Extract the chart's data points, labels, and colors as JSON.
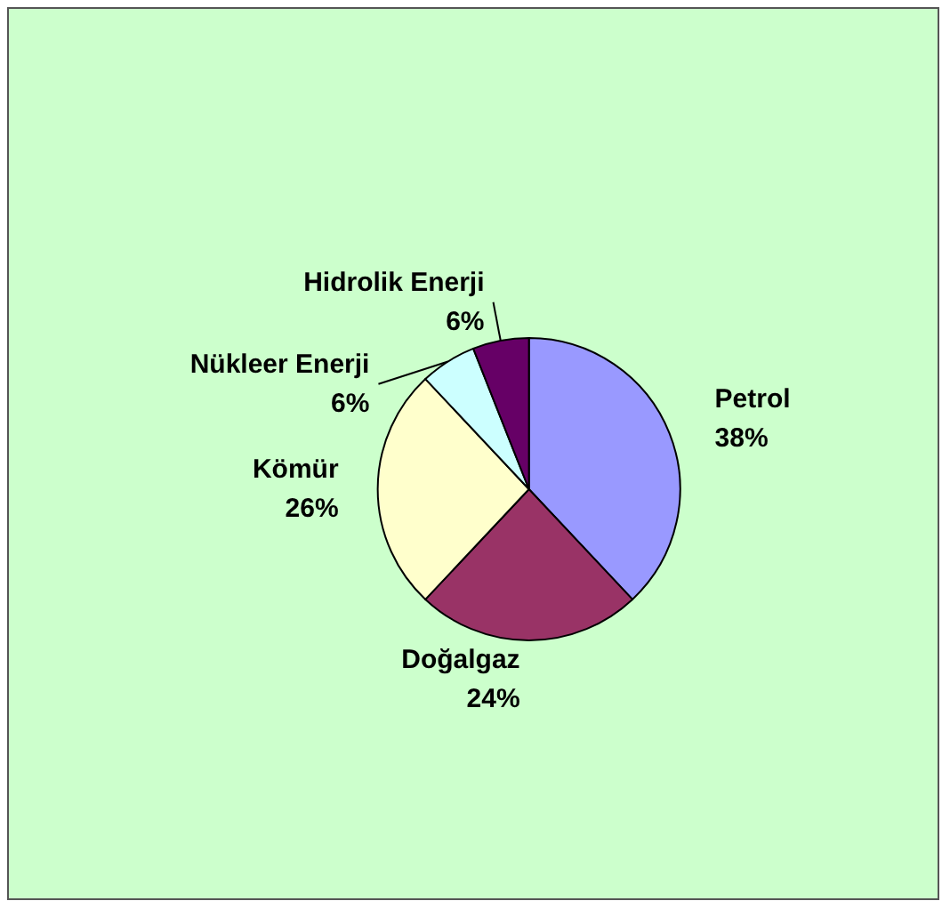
{
  "chart_data": {
    "type": "pie",
    "categories": [
      "Petrol",
      "Doğalgaz",
      "Kömür",
      "Nükleer Enerji",
      "Hidrolik Enerji"
    ],
    "values": [
      38,
      24,
      26,
      6,
      6
    ],
    "value_labels": [
      "38%",
      "24%",
      "26%",
      "6%",
      "6%"
    ],
    "colors": [
      "#9999ff",
      "#993366",
      "#ffffcc",
      "#ccffff",
      "#660066"
    ]
  }
}
